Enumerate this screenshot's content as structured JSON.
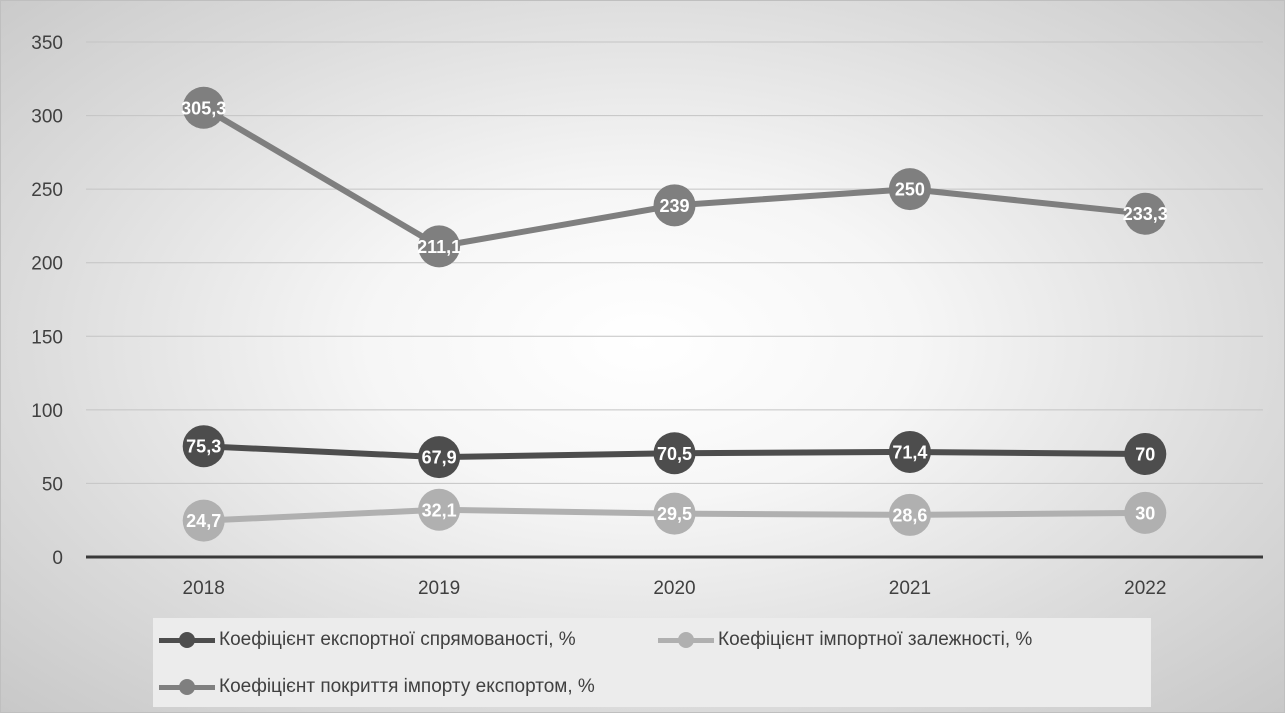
{
  "chart_data": {
    "type": "line",
    "categories": [
      "2018",
      "2019",
      "2020",
      "2021",
      "2022"
    ],
    "ylim": [
      0,
      350
    ],
    "yticks": [
      "0",
      "50",
      "100",
      "150",
      "200",
      "250",
      "300",
      "350"
    ],
    "grid": true,
    "legend_position": "bottom",
    "series": [
      {
        "name": "Коефіцієнт експортної спрямованості, %",
        "values": [
          75.3,
          67.9,
          70.5,
          71.4,
          70
        ],
        "labels": [
          "75,3",
          "67,9",
          "70,5",
          "71,4",
          "70"
        ],
        "color": "#4d4d4d"
      },
      {
        "name": "Коефіцієнт імпортної залежності, %",
        "values": [
          24.7,
          32.1,
          29.5,
          28.6,
          30
        ],
        "labels": [
          "24,7",
          "32,1",
          "29,5",
          "28,6",
          "30"
        ],
        "color": "#b0b0b0"
      },
      {
        "name": "Коефіцієнт покриття імпорту експортом, %",
        "values": [
          305.3,
          211.1,
          239,
          250,
          233.3
        ],
        "labels": [
          "305,3",
          "211,1",
          "239",
          "250",
          "233,3"
        ],
        "color": "#7f7f7f"
      }
    ]
  }
}
